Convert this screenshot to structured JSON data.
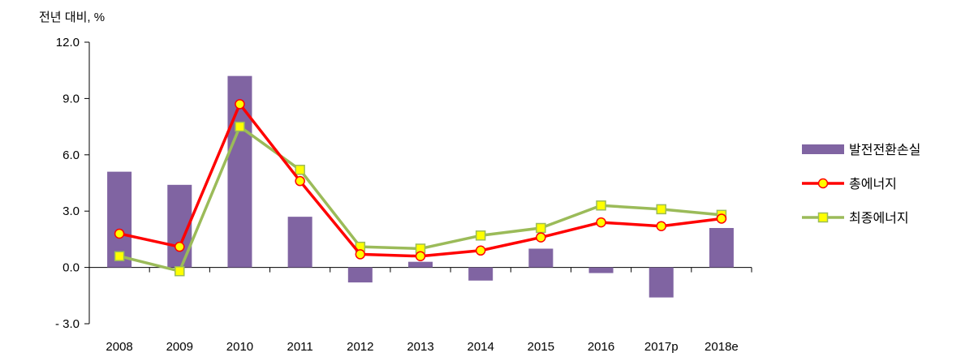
{
  "chart_data": {
    "type": "bar",
    "ylabel": "전년 대비, %",
    "categories": [
      "2008",
      "2009",
      "2010",
      "2011",
      "2012",
      "2013",
      "2014",
      "2015",
      "2016",
      "2017p",
      "2018e"
    ],
    "ylim": [
      -3.0,
      12.0
    ],
    "yticks": [
      12.0,
      9.0,
      6.0,
      3.0,
      0.0,
      -3.0
    ],
    "ytick_labels": [
      "12.0",
      "9.0",
      "6.0",
      "3.0",
      "0.0",
      "- 3.0"
    ],
    "grid": false,
    "legend_position": "right",
    "series": [
      {
        "name": "발전전환손실",
        "type": "bar",
        "color": "#8064A2",
        "values": [
          5.1,
          4.4,
          10.2,
          2.7,
          -0.8,
          0.3,
          -0.7,
          1.0,
          -0.3,
          -1.6,
          2.1
        ]
      },
      {
        "name": "총에너지",
        "type": "line",
        "color": "#FF0000",
        "marker": "circle",
        "marker_fill": "#FFFF00",
        "values": [
          1.8,
          1.1,
          8.7,
          4.6,
          0.7,
          0.6,
          0.9,
          1.6,
          2.4,
          2.2,
          2.6
        ]
      },
      {
        "name": "최종에너지",
        "type": "line",
        "color": "#9BBB59",
        "marker": "square",
        "marker_fill": "#FFFF00",
        "values": [
          0.6,
          -0.2,
          7.5,
          5.2,
          1.1,
          1.0,
          1.7,
          2.1,
          3.3,
          3.1,
          2.8
        ]
      }
    ]
  }
}
